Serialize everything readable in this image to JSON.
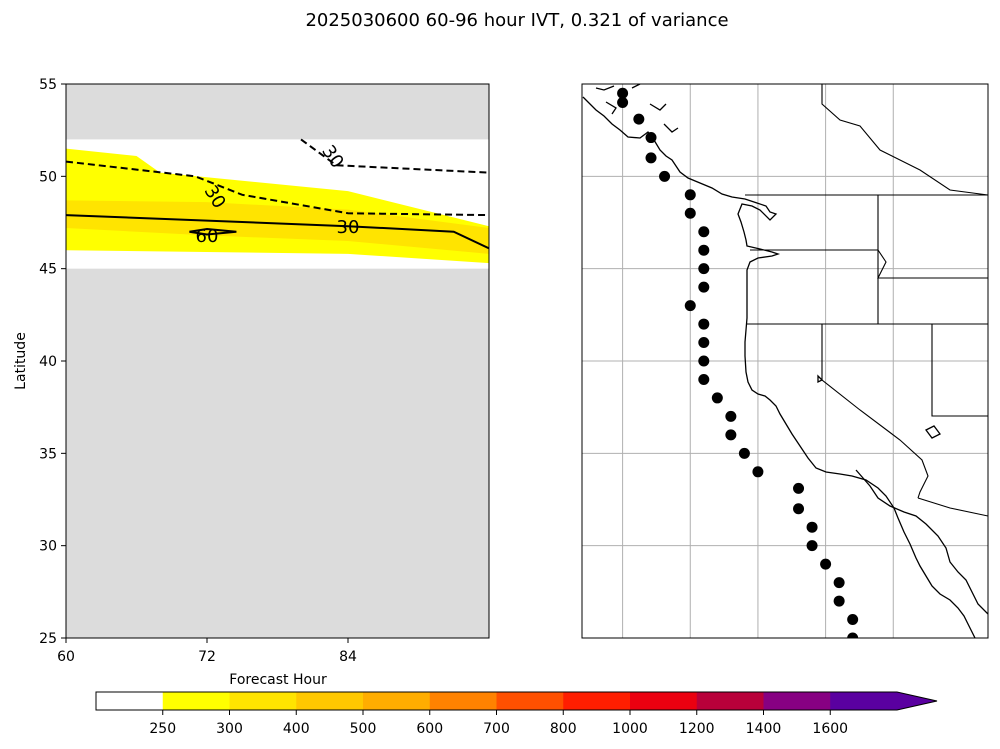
{
  "figure": {
    "title": "2025030600 60-96 hour IVT, 0.321 of variance"
  },
  "chart_data": [
    {
      "type": "heatmap",
      "panel": "hovmoller",
      "xlabel": "Forecast Hour",
      "ylabel": "Latitude",
      "xlim": [
        60,
        96
      ],
      "ylim": [
        25,
        55
      ],
      "xticks": [
        60,
        72,
        84
      ],
      "yticks": [
        25,
        30,
        35,
        40,
        45,
        50,
        55
      ],
      "masked_below_lat": 45,
      "masked_above_lat": 52,
      "masked_color": "#dcdcdc",
      "filled_bands": [
        {
          "level": "250-300",
          "color": "#ffff00",
          "upper": [
            [
              60,
              51.5
            ],
            [
              66,
              51.1
            ],
            [
              68,
              50.2
            ],
            [
              84,
              49.2
            ],
            [
              96,
              47.3
            ]
          ],
          "lower": [
            [
              60,
              46.0
            ],
            [
              84,
              45.8
            ],
            [
              96,
              45.3
            ]
          ]
        },
        {
          "level": "300-400",
          "color": "#ffe400",
          "upper": [
            [
              60,
              48.7
            ],
            [
              72,
              48.6
            ],
            [
              84,
              48.2
            ],
            [
              96,
              47.2
            ]
          ],
          "lower": [
            [
              60,
              47.2
            ],
            [
              72,
              46.8
            ],
            [
              84,
              46.5
            ],
            [
              96,
              45.8
            ]
          ]
        }
      ],
      "contours": [
        {
          "label": "30",
          "style": "solid",
          "points": [
            [
              60,
              47.9
            ],
            [
              84,
              47.3
            ],
            [
              93,
              47.0
            ],
            [
              96,
              46.1
            ]
          ]
        },
        {
          "label": "30",
          "style": "dashed",
          "points": [
            [
              60,
              50.8
            ],
            [
              71,
              50.0
            ],
            [
              75,
              49.0
            ],
            [
              84,
              48.0
            ],
            [
              96,
              47.9
            ]
          ]
        },
        {
          "label": "30",
          "style": "dashed",
          "points": [
            [
              80,
              52.0
            ],
            [
              83,
              50.6
            ],
            [
              96,
              50.2
            ]
          ]
        },
        {
          "label": "60",
          "style": "solid",
          "points": [
            [
              70.5,
              47.0
            ],
            [
              72,
              46.85
            ],
            [
              74.5,
              47.0
            ],
            [
              72,
              47.15
            ],
            [
              70.5,
              47.0
            ]
          ]
        }
      ]
    },
    {
      "type": "scatter",
      "panel": "map",
      "projection": "PlateCarree",
      "lon_range": [
        -140,
        -110
      ],
      "lat_range": [
        25,
        55
      ],
      "gridlines_lon": [
        -137,
        -132,
        -127,
        -122,
        -117
      ],
      "gridlines_lat": [
        30,
        35,
        40,
        45,
        50
      ],
      "marker_color": "#000000",
      "points": [
        {
          "lon": -137.0,
          "lat": 54.5
        },
        {
          "lon": -137.0,
          "lat": 54.0
        },
        {
          "lon": -135.8,
          "lat": 53.1
        },
        {
          "lon": -134.9,
          "lat": 52.1
        },
        {
          "lon": -134.9,
          "lat": 51.0
        },
        {
          "lon": -133.9,
          "lat": 50.0
        },
        {
          "lon": -132.0,
          "lat": 49.0
        },
        {
          "lon": -132.0,
          "lat": 48.0
        },
        {
          "lon": -131.0,
          "lat": 47.0
        },
        {
          "lon": -131.0,
          "lat": 46.0
        },
        {
          "lon": -131.0,
          "lat": 45.0
        },
        {
          "lon": -131.0,
          "lat": 44.0
        },
        {
          "lon": -132.0,
          "lat": 43.0
        },
        {
          "lon": -131.0,
          "lat": 42.0
        },
        {
          "lon": -131.0,
          "lat": 41.0
        },
        {
          "lon": -131.0,
          "lat": 40.0
        },
        {
          "lon": -131.0,
          "lat": 39.0
        },
        {
          "lon": -130.0,
          "lat": 38.0
        },
        {
          "lon": -129.0,
          "lat": 37.0
        },
        {
          "lon": -129.0,
          "lat": 36.0
        },
        {
          "lon": -128.0,
          "lat": 35.0
        },
        {
          "lon": -127.0,
          "lat": 34.0
        },
        {
          "lon": -124.0,
          "lat": 33.1
        },
        {
          "lon": -124.0,
          "lat": 32.0
        },
        {
          "lon": -123.0,
          "lat": 31.0
        },
        {
          "lon": -123.0,
          "lat": 30.0
        },
        {
          "lon": -122.0,
          "lat": 29.0
        },
        {
          "lon": -121.0,
          "lat": 28.0
        },
        {
          "lon": -121.0,
          "lat": 27.0
        },
        {
          "lon": -120.0,
          "lat": 26.0
        },
        {
          "lon": -120.0,
          "lat": 25.0
        }
      ]
    }
  ],
  "colorbar": {
    "levels": [
      "250",
      "300",
      "400",
      "500",
      "600",
      "700",
      "800",
      "1000",
      "1200",
      "1400",
      "1600"
    ],
    "colors": [
      "#ffffff",
      "#ffff00",
      "#ffe400",
      "#ffc800",
      "#ffad00",
      "#ff8200",
      "#ff5000",
      "#ff1e00",
      "#eb0010",
      "#b8003a",
      "#870082",
      "#5a00a0"
    ],
    "extend": "max"
  }
}
